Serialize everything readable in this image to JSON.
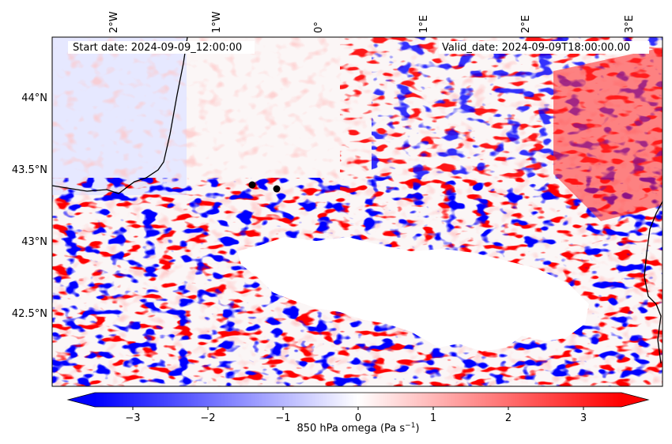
{
  "map": {
    "start_label": "Start date: 2024-09-09_12:00:00",
    "valid_label": "Valid_date: 2024-09-09T18:00:00.00",
    "lon_ticks": [
      {
        "label": "2°W"
      },
      {
        "label": "1°W"
      },
      {
        "label": "0°"
      },
      {
        "label": "1°E"
      },
      {
        "label": "2°E"
      },
      {
        "label": "3°E"
      }
    ],
    "lat_ticks": [
      {
        "label": "44°N"
      },
      {
        "label": "43.5°N"
      },
      {
        "label": "43°N"
      },
      {
        "label": "42.5°N"
      }
    ],
    "points": [
      {
        "name": "marker-1"
      },
      {
        "name": "marker-2"
      }
    ]
  },
  "colorbar": {
    "label": "850 hPa omega (Pa s",
    "label_sup": "−1",
    "label_close": ")",
    "ticks": [
      "−3",
      "−2",
      "−1",
      "0",
      "1",
      "2",
      "3"
    ],
    "colors": {
      "negative": "#0000ff",
      "neutral": "#ffffff",
      "positive": "#ff0000"
    }
  }
}
